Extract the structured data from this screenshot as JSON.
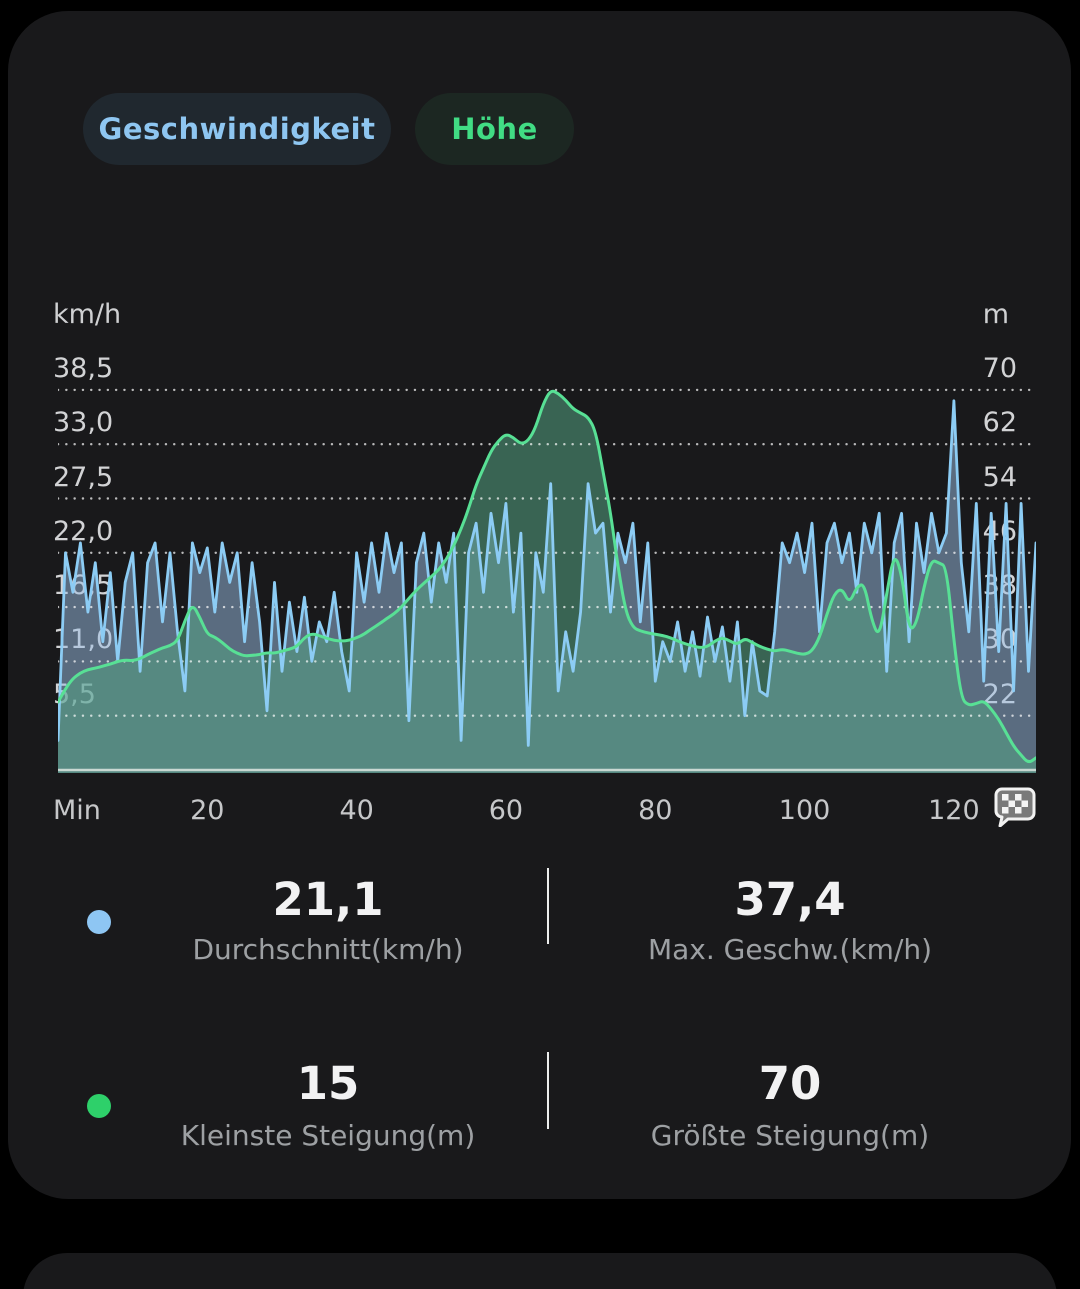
{
  "tabs": [
    {
      "label": "Geschwindigkeit",
      "text_color": "#8ec6f1",
      "bg": "#20282f",
      "selected": false
    },
    {
      "label": "Höhe",
      "text_color": "#41dc84",
      "bg": "#1c2722",
      "selected": true
    }
  ],
  "icons": {
    "x_axis_end": "finish-flag-icon",
    "legend_speed": "blue-dot",
    "legend_elevation": "green-dot"
  },
  "colors": {
    "background": "#000000",
    "card": "#19191b",
    "speed_line": "#8cccf4",
    "speed_fill": "#9cc0e6",
    "elevation_line": "#58e095",
    "elevation_fill": "#54a281",
    "gridline": "#ffffff",
    "axis_text": "#d2d3d5",
    "stat_value_text": "#f2f2f3",
    "stat_label_text": "#9da0a3"
  },
  "chart_data": {
    "type": "area",
    "title": "",
    "x_unit_label": "Min",
    "x_min": 0,
    "x_max": 131,
    "x_ticks": [
      20,
      40,
      60,
      80,
      100,
      120
    ],
    "grid": "dotted-horizontal",
    "legend_position": "none",
    "left_axis": {
      "title": "km/h",
      "tick_labels": [
        "38,5",
        "33,0",
        "27,5",
        "22,0",
        "16,5",
        "11,0",
        "5,5"
      ],
      "tick_values": [
        38.5,
        33,
        27.5,
        22,
        16.5,
        11,
        5.5
      ]
    },
    "right_axis": {
      "title": "m",
      "tick_labels": [
        "70",
        "62",
        "54",
        "46",
        "38",
        "30",
        "22"
      ],
      "tick_values": [
        70,
        62,
        54,
        46,
        38,
        30,
        22
      ]
    },
    "series": [
      {
        "name": "Geschwindigkeit",
        "unit": "km/h",
        "axis": "left",
        "color": "#8cccf4",
        "fill": "#9cc0e6",
        "fill_opacity": 0.5,
        "stroke_width": 2.8,
        "smooth": false,
        "axis_min": -0.3,
        "axis_max": 42.44,
        "values": [
          3,
          22,
          18,
          23,
          16,
          21,
          13,
          20,
          11,
          19,
          22,
          10,
          21,
          23,
          15,
          22,
          14,
          8,
          23,
          20,
          22.5,
          16,
          23,
          19,
          22,
          13,
          21,
          15,
          6,
          19,
          10,
          17,
          12,
          17.5,
          11,
          15,
          13,
          18,
          12,
          8,
          22,
          17,
          23,
          18,
          24,
          20,
          23,
          5,
          21,
          24,
          17,
          23,
          19,
          24,
          3,
          22,
          25,
          18,
          26,
          21,
          27,
          16,
          24,
          2.5,
          22,
          18,
          29,
          8,
          14,
          10,
          16,
          29,
          24,
          25,
          16,
          24,
          21,
          25,
          15,
          23,
          9,
          13,
          11,
          15,
          10,
          14,
          9.5,
          15.5,
          11,
          14.5,
          9,
          15,
          5.5,
          13,
          8,
          7.5,
          14,
          23,
          21,
          24,
          20,
          25,
          14,
          23,
          25,
          21,
          24,
          18,
          25,
          22,
          26,
          10,
          23,
          26,
          13,
          25,
          20,
          26,
          22,
          24,
          37.4,
          21,
          14,
          27,
          9,
          26,
          12,
          27,
          8,
          27,
          10,
          23
        ]
      },
      {
        "name": "Höhe",
        "unit": "m",
        "axis": "right",
        "color": "#58e095",
        "fill": "#54a281",
        "fill_opacity": 0.55,
        "stroke_width": 3,
        "smooth": true,
        "axis_min": 13.56,
        "axis_max": 75.73,
        "values": [
          24,
          26,
          27.5,
          28.3,
          28.8,
          29,
          29.3,
          29.6,
          30,
          30.2,
          30.1,
          30.4,
          31,
          31.5,
          32,
          32.3,
          33,
          36,
          38.5,
          36.5,
          34,
          33.6,
          32.8,
          31.8,
          31.2,
          30.8,
          30.9,
          31,
          31.3,
          31.2,
          31.5,
          31.8,
          32.2,
          33.5,
          34.1,
          33.8,
          33.4,
          33.1,
          33,
          33.1,
          33.5,
          34,
          34.8,
          35.5,
          36.3,
          37,
          38,
          39.3,
          40.5,
          41.5,
          42.5,
          43.5,
          45,
          47,
          49.5,
          52.5,
          56,
          58.5,
          61,
          62.5,
          63.5,
          63,
          62,
          62.5,
          64.5,
          68,
          70,
          69.5,
          68.5,
          67.2,
          66.6,
          66,
          64,
          58,
          52,
          44,
          37.5,
          35,
          34.5,
          34.2,
          34,
          33.8,
          33.5,
          33,
          32.6,
          32.3,
          32,
          32.2,
          33,
          33.5,
          33,
          32.5,
          33.4,
          32.8,
          32.2,
          31.8,
          31.5,
          31.8,
          31.5,
          31.2,
          31,
          31.5,
          33.5,
          37,
          40,
          40.8,
          38.5,
          41,
          41.5,
          36,
          33.5,
          40,
          46,
          43,
          34.5,
          35.5,
          41,
          45,
          44.5,
          44,
          33,
          24.5,
          23.5,
          23.8,
          24.2,
          23,
          21.5,
          19.5,
          17.5,
          16.2,
          15,
          15.8
        ]
      }
    ]
  },
  "stats": {
    "rows": [
      {
        "dot_color": "#8ec6f3",
        "items": [
          {
            "value": "21,1",
            "label": "Durchschnitt(km/h)"
          },
          {
            "value": "37,4",
            "label": "Max. Geschw.(km/h)"
          }
        ]
      },
      {
        "dot_color": "#2ed06a",
        "items": [
          {
            "value": "15",
            "label": "Kleinste Steigung(m)"
          },
          {
            "value": "70",
            "label": "Größte Steigung(m)"
          }
        ]
      }
    ]
  }
}
